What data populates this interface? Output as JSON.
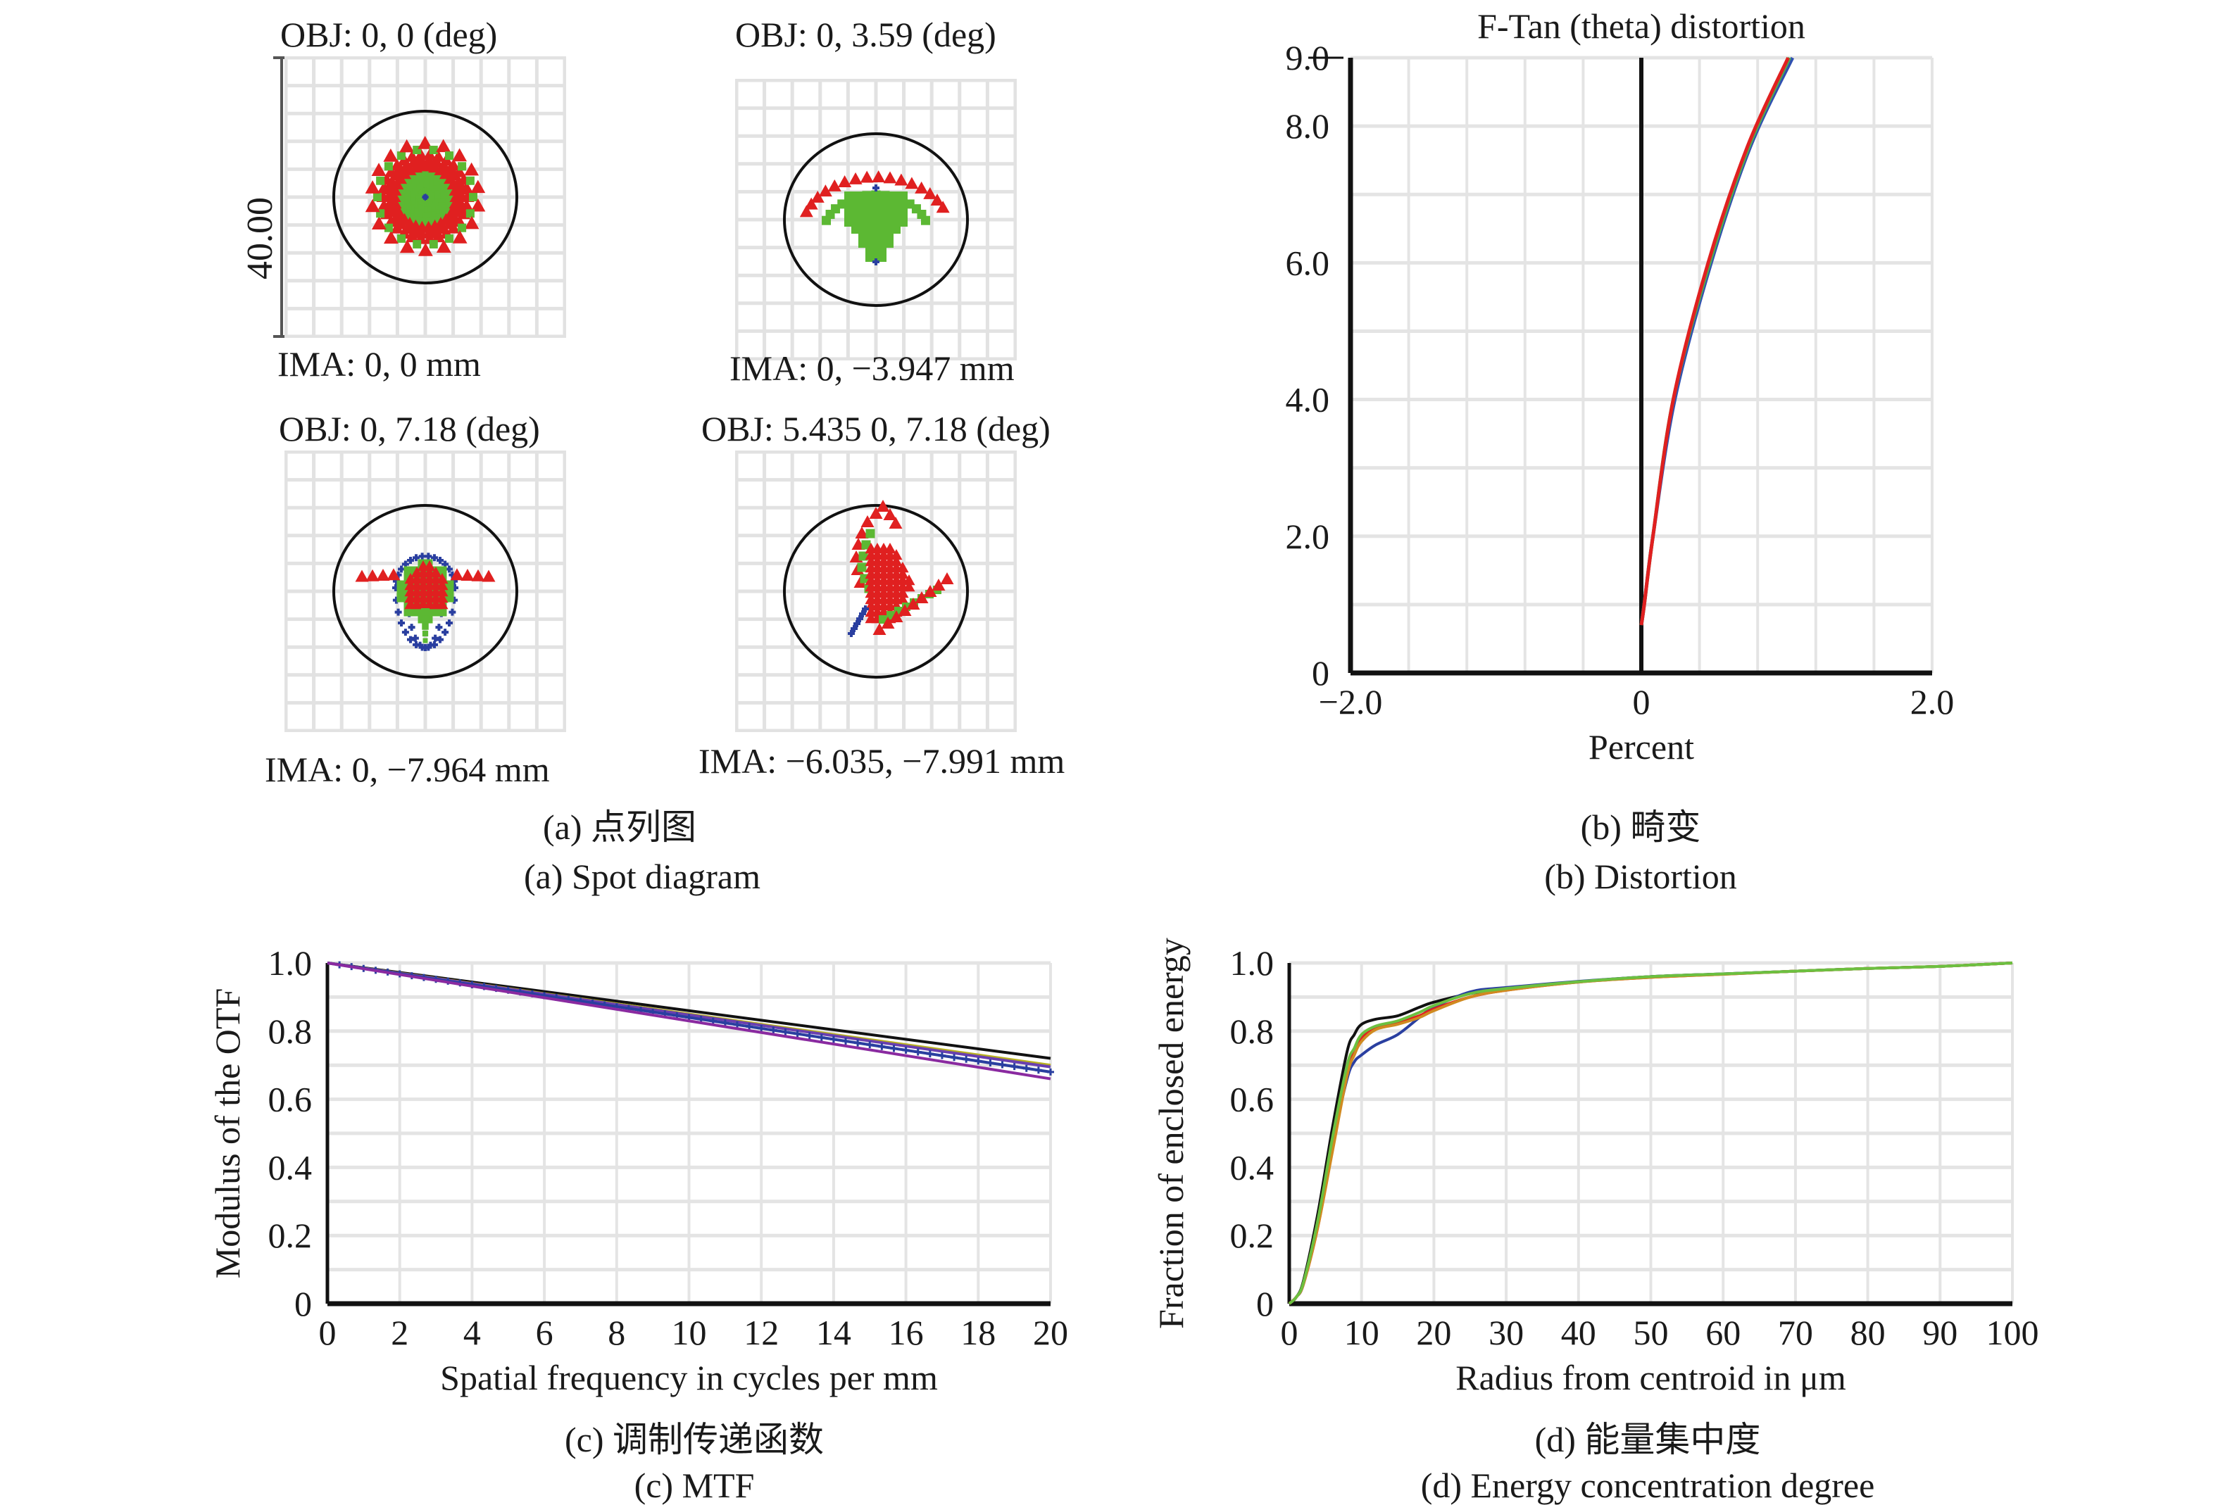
{
  "spot_diagram": {
    "scale_bar_label": "40.00",
    "panels": [
      {
        "obj": "OBJ: 0, 0 (deg)",
        "ima": "IMA: 0, 0 mm",
        "pattern": "symmetric"
      },
      {
        "obj": "OBJ: 0, 3.59 (deg)",
        "ima": "IMA: 0, −3.947 mm",
        "pattern": "arc"
      },
      {
        "obj": "OBJ: 0, 7.18 (deg)",
        "ima": "IMA: 0, −7.964 mm",
        "pattern": "flame"
      },
      {
        "obj": "OBJ: 5.435 0, 7.18 (deg)",
        "ima": "IMA: −6.035, −7.991 mm",
        "pattern": "skew"
      }
    ],
    "wavelength_colors": {
      "red": "#e02020",
      "green": "#5cb833",
      "blue": "#2a3fa0"
    },
    "caption_cn": "(a) 点列图",
    "caption_en": "(a) Spot diagram"
  },
  "captions": {
    "b_cn": "(b) 畸变",
    "b_en": "(b) Distortion",
    "c_cn": "(c) 调制传递函数",
    "c_en": "(c) MTF",
    "d_cn": "(d) 能量集中度",
    "d_en": "(d) Energy concentration degree"
  },
  "chart_data": [
    {
      "id": "distortion",
      "type": "line",
      "title": "F-Tan (theta) distortion",
      "xlabel": "Percent",
      "ylabel": "",
      "xlim": [
        -2.0,
        2.0
      ],
      "ylim": [
        0,
        9.0
      ],
      "xticks": [
        "−2.0",
        "0",
        "2.0"
      ],
      "xtick_values": [
        -2.0,
        0,
        2.0
      ],
      "yticks": [
        "0",
        "2.0",
        "4.0",
        "6.0",
        "8.0",
        "9.0"
      ],
      "ytick_values": [
        0,
        2,
        4,
        6,
        8,
        9
      ],
      "grid": true,
      "series": [
        {
          "name": "blue",
          "color": "#3050b0",
          "x": [
            0,
            0.02,
            0.08,
            0.23,
            0.48,
            0.75,
            1.04
          ],
          "y": [
            0.7,
            1.0,
            2.0,
            4.0,
            6.0,
            7.7,
            9.0
          ]
        },
        {
          "name": "green",
          "color": "#4caf50",
          "x": [
            0,
            0.02,
            0.08,
            0.22,
            0.47,
            0.74,
            1.02
          ],
          "y": [
            0.7,
            1.0,
            2.0,
            4.0,
            6.0,
            7.7,
            9.0
          ]
        },
        {
          "name": "red",
          "color": "#e02020",
          "x": [
            0,
            0.02,
            0.08,
            0.22,
            0.46,
            0.73,
            1.01
          ],
          "y": [
            0.7,
            1.0,
            2.0,
            4.0,
            6.0,
            7.7,
            9.0
          ]
        }
      ]
    },
    {
      "id": "mtf",
      "type": "line",
      "title": "",
      "xlabel": "Spatial frequency in cycles per mm",
      "ylabel": "Modulus of the OTF",
      "xlim": [
        0,
        20
      ],
      "ylim": [
        0,
        1.0
      ],
      "xticks": [
        "0",
        "2",
        "4",
        "6",
        "8",
        "10",
        "12",
        "14",
        "16",
        "18",
        "20"
      ],
      "xtick_values": [
        0,
        2,
        4,
        6,
        8,
        10,
        12,
        14,
        16,
        18,
        20
      ],
      "yticks": [
        "0",
        "0.2",
        "0.4",
        "0.6",
        "0.8",
        "1.0"
      ],
      "ytick_values": [
        0,
        0.2,
        0.4,
        0.6,
        0.8,
        1.0
      ],
      "grid": true,
      "series": [
        {
          "name": "black",
          "color": "#111111",
          "x": [
            0,
            20
          ],
          "y": [
            1.0,
            0.72
          ],
          "marker": "none"
        },
        {
          "name": "olive",
          "color": "#b8b020",
          "x": [
            0,
            20
          ],
          "y": [
            1.0,
            0.7
          ],
          "marker": "none"
        },
        {
          "name": "violet",
          "color": "#6a3fb0",
          "x": [
            0,
            20
          ],
          "y": [
            1.0,
            0.695
          ],
          "marker": "none"
        },
        {
          "name": "blue-plus",
          "color": "#2a3fa0",
          "x": [
            0,
            20
          ],
          "y": [
            1.0,
            0.68
          ],
          "marker": "plus"
        },
        {
          "name": "purple",
          "color": "#8a2aa0",
          "x": [
            0,
            20
          ],
          "y": [
            1.0,
            0.66
          ],
          "marker": "none"
        }
      ]
    },
    {
      "id": "encircled-energy",
      "type": "line",
      "title": "",
      "xlabel": "Radius from centroid in μm",
      "ylabel": "Fraction of enclosed energy",
      "xlim": [
        0,
        100
      ],
      "ylim": [
        0,
        1.0
      ],
      "xticks": [
        "0",
        "10",
        "20",
        "30",
        "40",
        "50",
        "60",
        "70",
        "80",
        "90",
        "100"
      ],
      "xtick_values": [
        0,
        10,
        20,
        30,
        40,
        50,
        60,
        70,
        80,
        90,
        100
      ],
      "yticks": [
        "0",
        "0.2",
        "0.4",
        "0.6",
        "0.8",
        "1.0"
      ],
      "ytick_values": [
        0,
        0.2,
        0.4,
        0.6,
        0.8,
        1.0
      ],
      "grid": true,
      "series": [
        {
          "name": "black",
          "color": "#111111",
          "x": [
            0,
            1,
            2,
            4,
            6,
            8,
            9,
            10,
            12,
            15,
            18,
            20,
            25,
            30,
            40,
            50,
            60,
            70,
            80,
            90,
            100
          ],
          "y": [
            0,
            0.02,
            0.07,
            0.27,
            0.52,
            0.74,
            0.79,
            0.82,
            0.835,
            0.845,
            0.87,
            0.885,
            0.91,
            0.925,
            0.945,
            0.96,
            0.968,
            0.976,
            0.984,
            0.99,
            1.0
          ]
        },
        {
          "name": "blue",
          "color": "#2a3fa0",
          "x": [
            0,
            1,
            2,
            4,
            6,
            8,
            9,
            10,
            12,
            15,
            18,
            20,
            25,
            30,
            40,
            50,
            60,
            70,
            80,
            90,
            100
          ],
          "y": [
            0,
            0.02,
            0.06,
            0.24,
            0.47,
            0.66,
            0.71,
            0.73,
            0.76,
            0.79,
            0.84,
            0.87,
            0.915,
            0.928,
            0.946,
            0.96,
            0.968,
            0.976,
            0.984,
            0.99,
            1.0
          ]
        },
        {
          "name": "red",
          "color": "#e02020",
          "x": [
            0,
            1,
            2,
            4,
            6,
            8,
            9,
            10,
            12,
            15,
            18,
            20,
            25,
            30,
            40,
            50,
            60,
            70,
            80,
            90,
            100
          ],
          "y": [
            0,
            0.02,
            0.06,
            0.23,
            0.46,
            0.68,
            0.74,
            0.78,
            0.81,
            0.825,
            0.845,
            0.865,
            0.9,
            0.92,
            0.944,
            0.958,
            0.967,
            0.976,
            0.984,
            0.99,
            1.0
          ]
        },
        {
          "name": "orange",
          "color": "#d08a20",
          "x": [
            0,
            1,
            2,
            4,
            6,
            8,
            9,
            10,
            12,
            15,
            18,
            20,
            25,
            30,
            40,
            50,
            60,
            70,
            80,
            90,
            100
          ],
          "y": [
            0,
            0.02,
            0.06,
            0.23,
            0.45,
            0.67,
            0.73,
            0.77,
            0.805,
            0.82,
            0.84,
            0.86,
            0.9,
            0.92,
            0.944,
            0.958,
            0.967,
            0.976,
            0.984,
            0.99,
            1.0
          ]
        },
        {
          "name": "green",
          "color": "#6cc040",
          "x": [
            0,
            1,
            2,
            4,
            6,
            8,
            9,
            10,
            12,
            15,
            18,
            20,
            25,
            30,
            40,
            50,
            60,
            70,
            80,
            90,
            100
          ],
          "y": [
            0,
            0.02,
            0.065,
            0.25,
            0.49,
            0.7,
            0.75,
            0.79,
            0.815,
            0.83,
            0.855,
            0.875,
            0.91,
            0.925,
            0.945,
            0.96,
            0.968,
            0.976,
            0.984,
            0.99,
            1.0
          ]
        }
      ]
    }
  ]
}
